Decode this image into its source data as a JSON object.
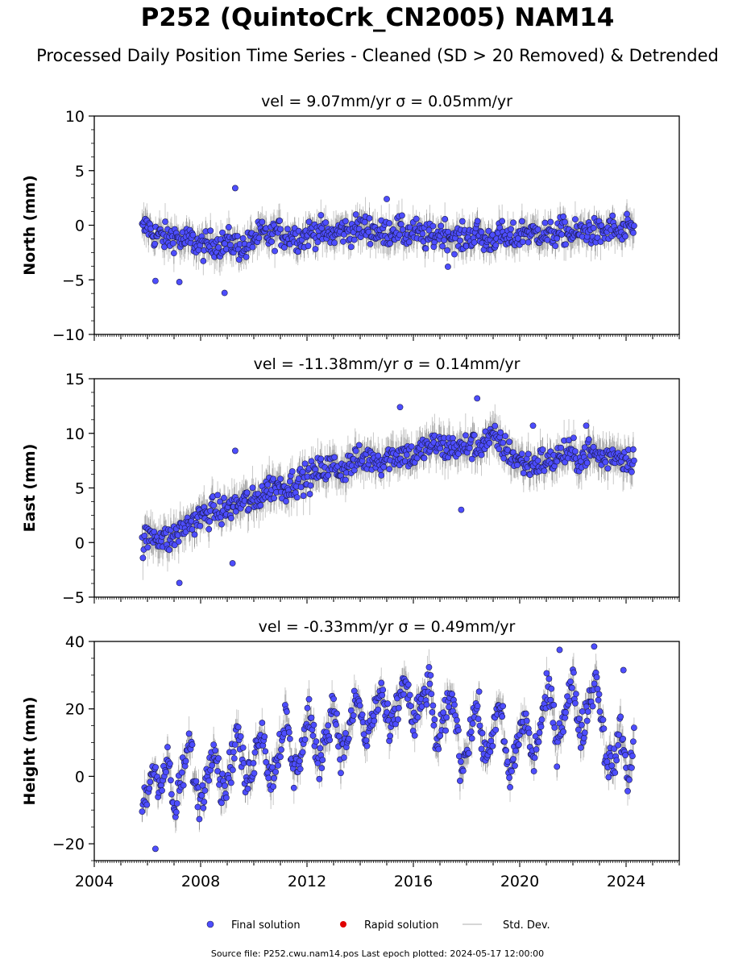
{
  "title": "P252 (QuintoCrk_CN2005) NAM14",
  "subtitle": "Processed Daily Position Time Series - Cleaned (SD > 20 Removed) & Detrended",
  "source_note": "Source file: P252.cwu.nam14.pos  Last epoch plotted: 2024-05-17 12:00:00",
  "colors": {
    "final": "#4d4dff",
    "rapid": "#e00000",
    "std": "#c8c8c8",
    "axis": "#000000"
  },
  "legend": [
    {
      "key": "final",
      "label": "Final solution",
      "marker": "dot-blue"
    },
    {
      "key": "rapid",
      "label": "Rapid solution",
      "marker": "dot-red"
    },
    {
      "key": "std",
      "label": "Std. Dev.",
      "marker": "line-grey"
    }
  ],
  "chart_data": [
    {
      "type": "scatter",
      "component": "North",
      "title": "vel = 9.07mm/yr   σ = 0.05mm/yr",
      "ylabel": "North (mm)",
      "xlim": [
        2004,
        2026
      ],
      "ylim": [
        -10,
        10
      ],
      "yticks": [
        "−10",
        "−5",
        "0",
        "5",
        "10"
      ],
      "ytick_values": [
        -10,
        -5,
        0,
        5,
        10
      ],
      "grid": false,
      "series": [
        {
          "name": "Final solution",
          "x": [
            2005.8,
            2006.0,
            2006.2,
            2006.5,
            2006.8,
            2007.0,
            2007.3,
            2007.6,
            2007.9,
            2008.2,
            2008.5,
            2008.8,
            2009.1,
            2009.4,
            2009.7,
            2010.0,
            2010.3,
            2010.6,
            2010.9,
            2011.2,
            2011.5,
            2011.8,
            2012.1,
            2012.4,
            2012.7,
            2013.0,
            2013.3,
            2013.6,
            2013.9,
            2014.2,
            2014.5,
            2014.8,
            2015.1,
            2015.4,
            2015.7,
            2016.0,
            2016.3,
            2016.6,
            2016.9,
            2017.2,
            2017.5,
            2017.8,
            2018.1,
            2018.4,
            2018.7,
            2019.0,
            2019.3,
            2019.6,
            2019.9,
            2020.2,
            2020.5,
            2020.8,
            2021.1,
            2021.4,
            2021.7,
            2022.0,
            2022.3,
            2022.6,
            2022.9,
            2023.2,
            2023.5,
            2023.8,
            2024.1,
            2024.3
          ],
          "y": [
            -0.5,
            0.0,
            -0.8,
            -1.0,
            -1.2,
            -0.9,
            -1.5,
            -1.3,
            -1.8,
            -2.0,
            -1.6,
            -1.8,
            -1.5,
            -1.9,
            -2.1,
            -1.2,
            -0.8,
            -1.1,
            -0.6,
            -1.0,
            -0.9,
            -1.2,
            -0.7,
            -0.5,
            -0.8,
            -0.9,
            -0.4,
            -0.6,
            -0.3,
            -0.2,
            -0.5,
            -0.8,
            -0.6,
            -0.3,
            -0.9,
            -0.5,
            -1.0,
            -1.2,
            -0.8,
            -0.6,
            -1.1,
            -1.3,
            -1.0,
            -0.7,
            -1.5,
            -1.2,
            -0.9,
            -1.4,
            -1.0,
            -0.5,
            -0.8,
            -0.6,
            -1.0,
            -0.7,
            -0.5,
            -0.9,
            -0.6,
            -0.4,
            -0.8,
            -0.6,
            -0.3,
            -0.9,
            -0.4,
            -0.2
          ]
        }
      ],
      "outliers": {
        "x": [
          2006.3,
          2007.2,
          2008.9,
          2009.3,
          2015.0,
          2017.3
        ],
        "y": [
          -5.1,
          -5.2,
          -6.2,
          3.4,
          2.4,
          -3.8
        ]
      }
    },
    {
      "type": "scatter",
      "component": "East",
      "title": "vel = -11.38mm/yr   σ = 0.14mm/yr",
      "ylabel": "East (mm)",
      "xlim": [
        2004,
        2026
      ],
      "ylim": [
        -5,
        15
      ],
      "yticks": [
        "−5",
        "0",
        "5",
        "10",
        "15"
      ],
      "ytick_values": [
        -5,
        0,
        5,
        10,
        15
      ],
      "grid": false,
      "series": [
        {
          "name": "Final solution",
          "x": [
            2005.8,
            2006.0,
            2006.2,
            2006.5,
            2006.8,
            2007.0,
            2007.3,
            2007.6,
            2007.9,
            2008.2,
            2008.5,
            2008.8,
            2009.1,
            2009.4,
            2009.7,
            2010.0,
            2010.3,
            2010.6,
            2010.9,
            2011.2,
            2011.5,
            2011.8,
            2012.1,
            2012.4,
            2012.7,
            2013.0,
            2013.3,
            2013.6,
            2013.9,
            2014.2,
            2014.5,
            2014.8,
            2015.1,
            2015.4,
            2015.7,
            2016.0,
            2016.3,
            2016.6,
            2016.9,
            2017.2,
            2017.5,
            2017.8,
            2018.1,
            2018.4,
            2018.7,
            2019.0,
            2019.3,
            2019.6,
            2019.9,
            2020.2,
            2020.5,
            2020.8,
            2021.1,
            2021.4,
            2021.7,
            2022.0,
            2022.3,
            2022.6,
            2022.9,
            2023.2,
            2023.5,
            2023.8,
            2024.1,
            2024.3
          ],
          "y": [
            0.0,
            0.3,
            0.8,
            0.5,
            0.2,
            0.6,
            1.2,
            1.8,
            2.2,
            2.5,
            3.0,
            2.8,
            3.2,
            3.5,
            3.8,
            3.6,
            4.5,
            5.0,
            5.2,
            5.0,
            5.5,
            5.8,
            6.0,
            6.5,
            6.8,
            7.0,
            6.6,
            7.2,
            7.5,
            7.6,
            7.8,
            7.4,
            7.9,
            8.0,
            8.2,
            7.8,
            8.4,
            8.8,
            9.0,
            8.6,
            8.8,
            8.5,
            9.0,
            8.7,
            9.3,
            9.6,
            9.0,
            8.2,
            7.6,
            7.2,
            7.0,
            7.5,
            7.3,
            7.8,
            8.2,
            8.0,
            7.6,
            8.4,
            8.0,
            7.7,
            8.1,
            7.9,
            7.6,
            7.8
          ]
        }
      ],
      "outliers": {
        "x": [
          2007.2,
          2009.2,
          2009.3,
          2015.5,
          2017.8,
          2018.4,
          2020.5,
          2022.5
        ],
        "y": [
          -3.7,
          -1.9,
          8.4,
          12.4,
          3.0,
          13.2,
          10.7,
          10.7
        ]
      }
    },
    {
      "type": "scatter",
      "component": "Height",
      "title": "vel = -0.33mm/yr   σ = 0.49mm/yr",
      "ylabel": "Height (mm)",
      "xlim": [
        2004,
        2026
      ],
      "ylim": [
        -25,
        40
      ],
      "yticks": [
        "−20",
        "0",
        "20",
        "40"
      ],
      "ytick_values": [
        -20,
        0,
        20,
        40
      ],
      "xticks": [
        "2004",
        "2008",
        "2012",
        "2016",
        "2020",
        "2024"
      ],
      "xtick_values": [
        2004,
        2008,
        2012,
        2016,
        2020,
        2024
      ],
      "grid": false,
      "series": [
        {
          "name": "Final solution",
          "x": [
            2005.8,
            2006.0,
            2006.2,
            2006.5,
            2006.8,
            2007.0,
            2007.3,
            2007.6,
            2007.9,
            2008.2,
            2008.5,
            2008.8,
            2009.1,
            2009.4,
            2009.7,
            2010.0,
            2010.3,
            2010.6,
            2010.9,
            2011.2,
            2011.5,
            2011.8,
            2012.1,
            2012.4,
            2012.7,
            2013.0,
            2013.3,
            2013.6,
            2013.9,
            2014.2,
            2014.5,
            2014.8,
            2015.1,
            2015.4,
            2015.7,
            2016.0,
            2016.3,
            2016.6,
            2016.9,
            2017.2,
            2017.5,
            2017.8,
            2018.1,
            2018.4,
            2018.7,
            2019.0,
            2019.3,
            2019.6,
            2019.9,
            2020.2,
            2020.5,
            2020.8,
            2021.1,
            2021.4,
            2021.7,
            2022.0,
            2022.3,
            2022.6,
            2022.9,
            2023.2,
            2023.5,
            2023.8,
            2024.1,
            2024.3
          ],
          "y": [
            -10,
            -5,
            3,
            -2,
            5,
            -12,
            0,
            10,
            -8,
            -2,
            12,
            -5,
            2,
            14,
            -3,
            5,
            16,
            -2,
            6,
            18,
            0,
            8,
            20,
            2,
            12,
            22,
            6,
            14,
            24,
            10,
            18,
            26,
            12,
            20,
            30,
            14,
            22,
            28,
            8,
            18,
            24,
            2,
            12,
            22,
            4,
            14,
            20,
            -2,
            10,
            18,
            4,
            16,
            26,
            10,
            20,
            28,
            12,
            22,
            30,
            8,
            2,
            14,
            -2,
            10
          ]
        }
      ],
      "outliers": {
        "x": [
          2006.3,
          2021.5,
          2022.8,
          2023.9
        ],
        "y": [
          -21.5,
          37.5,
          38.5,
          31.5
        ]
      }
    }
  ]
}
